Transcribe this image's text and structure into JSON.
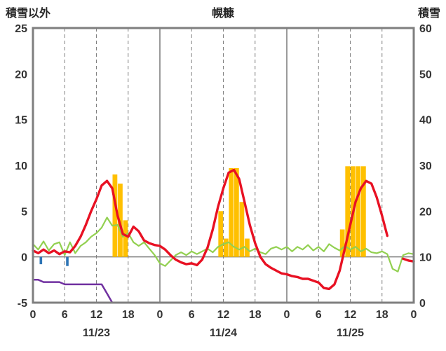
{
  "header": {
    "left_axis_title": "積雪以外",
    "chart_title": "幌糠",
    "right_axis_title": "積雪"
  },
  "chart_data": {
    "type": "combo",
    "title": "幌糠",
    "left_axis": {
      "label": "積雪以外",
      "min": -5,
      "max": 25,
      "ticks": [
        25,
        20,
        15,
        10,
        5,
        0,
        -5
      ]
    },
    "right_axis": {
      "label": "積雪",
      "min": 0,
      "max": 60,
      "ticks": [
        60,
        50,
        40,
        30,
        20,
        10,
        0
      ]
    },
    "x_axis": {
      "min": 0,
      "max": 72,
      "tick_step": 6,
      "tick_labels": [
        "0",
        "6",
        "12",
        "18",
        "0",
        "6",
        "12",
        "18",
        "0",
        "6",
        "12",
        "18",
        "0"
      ],
      "day_boundaries": [
        24,
        48
      ],
      "day_labels": [
        {
          "label": "11/23",
          "hour": 12
        },
        {
          "label": "11/24",
          "hour": 36
        },
        {
          "label": "11/25",
          "hour": 60
        }
      ]
    },
    "colors": {
      "temperature": "#e81123",
      "wind": "#92d050",
      "snow_depth": "#7030a0",
      "sunshine_bar": "#ffc000",
      "precip_bar": "#2e75b6",
      "grid": "#808080",
      "border": "#7f7f7f",
      "text": "#333333"
    },
    "series": [
      {
        "name": "sunshine",
        "type": "bar",
        "axis": "left",
        "color": "#ffc000",
        "bar_inset": 0.05,
        "points": [
          [
            15,
            9
          ],
          [
            16,
            8
          ],
          [
            17,
            4
          ],
          [
            35,
            5
          ],
          [
            36,
            2
          ],
          [
            37,
            9.7
          ],
          [
            38,
            9.7
          ],
          [
            39,
            6
          ],
          [
            40,
            2
          ],
          [
            58,
            3
          ],
          [
            59,
            9.9
          ],
          [
            60,
            9.9
          ],
          [
            61,
            9.9
          ],
          [
            62,
            9.9
          ]
        ]
      },
      {
        "name": "precipitation",
        "type": "bar",
        "axis": "left",
        "color": "#2e75b6",
        "bar_inset": 0.26,
        "points": [
          [
            1,
            -0.8
          ],
          [
            6,
            -1.0
          ]
        ]
      },
      {
        "name": "snow-depth",
        "type": "line",
        "axis": "right",
        "color": "#7030a0",
        "width": 2.5,
        "segments": [
          [
            [
              0,
              5
            ],
            [
              1,
              5
            ],
            [
              2,
              4.5
            ],
            [
              5,
              4.5
            ],
            [
              6,
              4
            ],
            [
              13,
              4
            ],
            [
              14,
              2
            ],
            [
              15,
              0
            ],
            [
              72,
              0
            ]
          ]
        ]
      },
      {
        "name": "wind",
        "type": "line",
        "axis": "left",
        "color": "#92d050",
        "width": 2.2,
        "segments": [
          [
            [
              0,
              1.4
            ],
            [
              1,
              0.8
            ],
            [
              2,
              1.7
            ],
            [
              3,
              0.7
            ],
            [
              4,
              1.4
            ],
            [
              5,
              1.6
            ],
            [
              6,
              0.2
            ],
            [
              7,
              1.6
            ],
            [
              8,
              0.4
            ],
            [
              9,
              1.2
            ],
            [
              10,
              1.6
            ],
            [
              11,
              2.2
            ],
            [
              12,
              2.6
            ],
            [
              13,
              3.2
            ],
            [
              14,
              4.3
            ],
            [
              15,
              3.4
            ],
            [
              16,
              3.5
            ],
            [
              17,
              2.2
            ],
            [
              18,
              2.6
            ],
            [
              19,
              1.6
            ],
            [
              20,
              1.2
            ],
            [
              21,
              1.6
            ],
            [
              22,
              0.9
            ],
            [
              23,
              0.2
            ],
            [
              24,
              -0.7
            ],
            [
              25,
              -1.0
            ],
            [
              26,
              -0.4
            ],
            [
              27,
              0.2
            ],
            [
              28,
              0.5
            ],
            [
              29,
              0.2
            ],
            [
              30,
              0.6
            ],
            [
              31,
              0.3
            ],
            [
              32,
              0.6
            ],
            [
              33,
              0.9
            ],
            [
              34,
              0.5
            ],
            [
              35,
              1.1
            ],
            [
              36,
              1.4
            ],
            [
              37,
              1.6
            ],
            [
              38,
              1.1
            ],
            [
              39,
              0.8
            ],
            [
              40,
              1.1
            ],
            [
              41,
              0.6
            ],
            [
              42,
              0.9
            ],
            [
              43,
              0.5
            ],
            [
              44,
              0.3
            ],
            [
              45,
              0.9
            ],
            [
              46,
              1.1
            ],
            [
              47,
              0.8
            ],
            [
              48,
              1.1
            ],
            [
              49,
              0.6
            ],
            [
              50,
              1.1
            ],
            [
              51,
              0.8
            ],
            [
              52,
              1.3
            ],
            [
              53,
              0.7
            ],
            [
              54,
              1.1
            ],
            [
              55,
              0.6
            ],
            [
              56,
              1.4
            ],
            [
              57,
              1.0
            ],
            [
              58,
              0.7
            ],
            [
              59,
              1.2
            ],
            [
              60,
              0.8
            ],
            [
              61,
              1.1
            ],
            [
              62,
              0.6
            ],
            [
              63,
              0.9
            ],
            [
              64,
              0.5
            ],
            [
              65,
              0.4
            ],
            [
              66,
              0.6
            ],
            [
              67,
              0.3
            ],
            [
              68,
              -1.3
            ],
            [
              69,
              -1.6
            ],
            [
              70,
              0.2
            ],
            [
              71,
              0.4
            ],
            [
              72,
              0.3
            ]
          ]
        ]
      },
      {
        "name": "temperature",
        "type": "line",
        "axis": "left",
        "color": "#e81123",
        "width": 3.4,
        "segments": [
          [
            [
              0,
              0.7
            ],
            [
              1,
              0.4
            ],
            [
              2,
              0.8
            ],
            [
              3,
              0.4
            ],
            [
              4,
              0.7
            ],
            [
              5,
              0.3
            ],
            [
              6,
              0.6
            ],
            [
              7,
              0.5
            ],
            [
              8,
              1.2
            ],
            [
              9,
              2.2
            ],
            [
              10,
              3.5
            ],
            [
              11,
              5.0
            ],
            [
              12,
              6.3
            ],
            [
              13,
              7.8
            ],
            [
              14,
              8.3
            ],
            [
              15,
              7.5
            ],
            [
              16,
              4.5
            ],
            [
              17,
              2.5
            ],
            [
              18,
              2.2
            ],
            [
              19,
              3.3
            ],
            [
              20,
              2.8
            ],
            [
              21,
              1.8
            ],
            [
              22,
              1.5
            ],
            [
              23,
              1.3
            ],
            [
              24,
              1.2
            ],
            [
              25,
              0.8
            ],
            [
              26,
              0.2
            ],
            [
              27,
              -0.3
            ],
            [
              28,
              -0.6
            ],
            [
              29,
              -0.8
            ],
            [
              30,
              -0.7
            ],
            [
              31,
              -0.9
            ],
            [
              32,
              -0.3
            ],
            [
              33,
              1.0
            ],
            [
              34,
              3.0
            ],
            [
              35,
              5.5
            ],
            [
              36,
              7.5
            ],
            [
              37,
              9.2
            ],
            [
              38,
              9.5
            ],
            [
              39,
              8.5
            ],
            [
              40,
              6.0
            ],
            [
              41,
              3.5
            ],
            [
              42,
              1.5
            ],
            [
              43,
              0.0
            ],
            [
              44,
              -0.8
            ],
            [
              45,
              -1.2
            ],
            [
              46,
              -1.5
            ],
            [
              47,
              -1.8
            ],
            [
              48,
              -1.9
            ],
            [
              49,
              -2.1
            ],
            [
              50,
              -2.2
            ],
            [
              51,
              -2.4
            ],
            [
              52,
              -2.4
            ],
            [
              53,
              -2.6
            ],
            [
              54,
              -2.8
            ],
            [
              55,
              -3.4
            ],
            [
              56,
              -3.5
            ],
            [
              57,
              -3.0
            ],
            [
              58,
              -1.5
            ],
            [
              59,
              1.0
            ],
            [
              60,
              3.5
            ],
            [
              61,
              6.0
            ],
            [
              62,
              7.5
            ],
            [
              63,
              8.3
            ],
            [
              64,
              8.0
            ],
            [
              65,
              6.5
            ],
            [
              66,
              4.5
            ],
            [
              67,
              2.3
            ]
          ],
          [
            [
              70,
              -0.2
            ],
            [
              71,
              -0.4
            ],
            [
              72,
              -0.5
            ]
          ]
        ]
      }
    ]
  }
}
